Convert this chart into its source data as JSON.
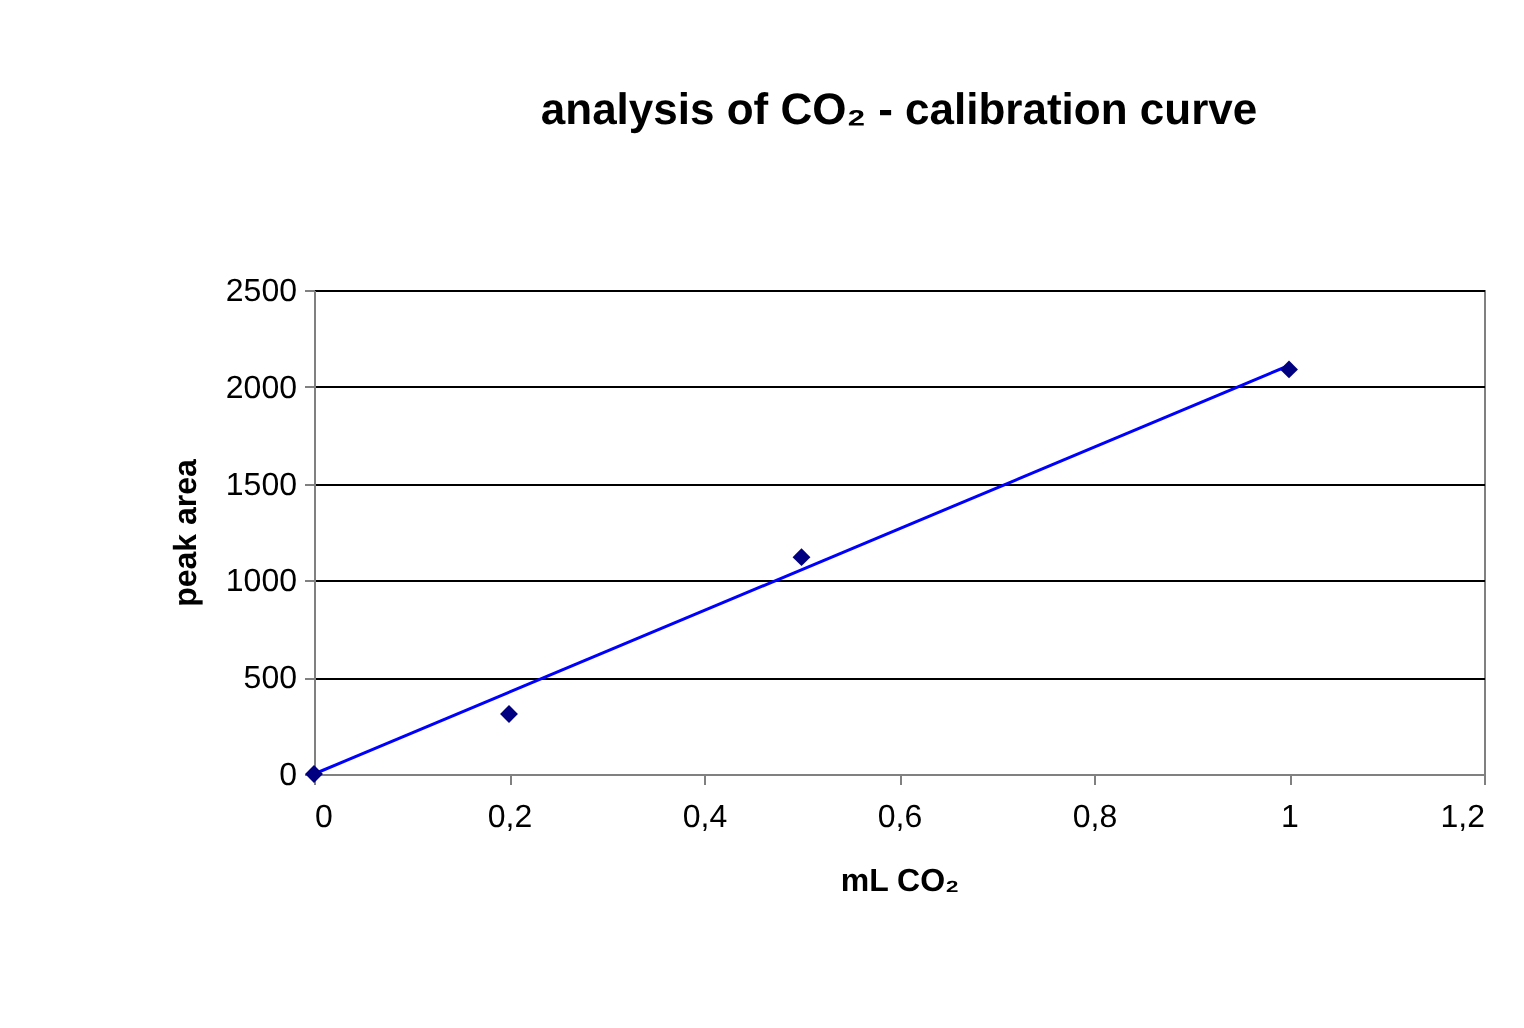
{
  "chart_data": {
    "type": "scatter",
    "title": "analysis of CO₂ - calibration curve",
    "xlabel": "mL CO₂",
    "ylabel": "peak area",
    "xlim": [
      0,
      1.2
    ],
    "xticks": [
      0,
      {
        "value": 0.2,
        "label": "0,2"
      },
      {
        "value": 0.4,
        "label": "0,4"
      },
      {
        "value": 0.6,
        "label": "0,6"
      },
      {
        "value": 0.8,
        "label": "0,8"
      },
      1,
      {
        "value": 1.2,
        "label": "1,2"
      }
    ],
    "ylim": [
      0,
      2500
    ],
    "yticks": [
      0,
      500,
      1000,
      1500,
      2000,
      2500
    ],
    "grid": "y",
    "series": [
      {
        "color": "#000080",
        "marker": "diamond",
        "x": [
          0,
          0.2,
          0.5,
          1
        ],
        "values": [
          0,
          310,
          1120,
          2090
        ]
      },
      {
        "type": "line",
        "color": "#0000ff",
        "line_style": "solid",
        "x": [
          0,
          1
        ],
        "values": [
          0,
          2110
        ]
      }
    ]
  }
}
